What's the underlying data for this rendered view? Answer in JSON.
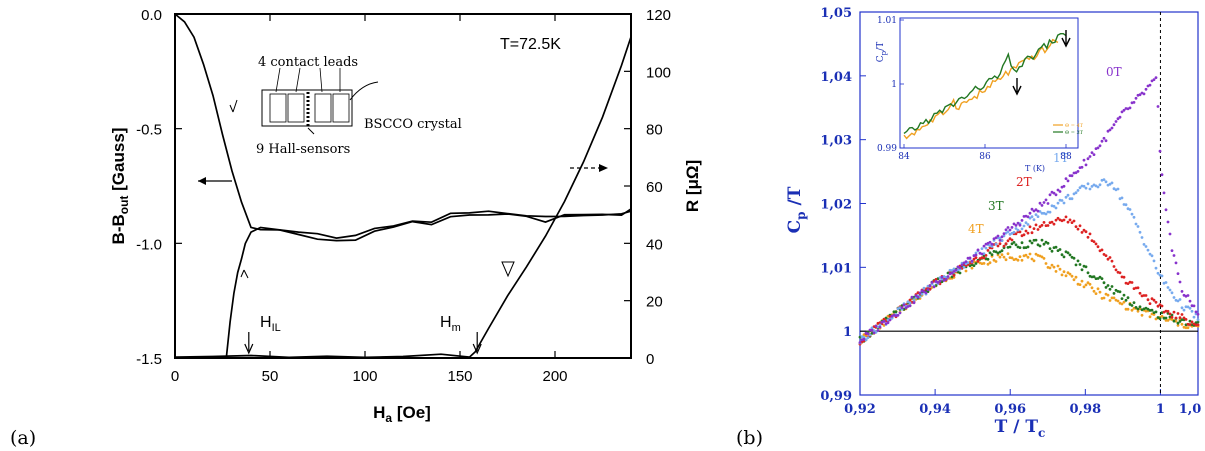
{
  "panels": {
    "a_label": "(a)",
    "b_label": "(b)"
  },
  "chart_data": [
    {
      "type": "line",
      "annotation_temperature": "T=72.5K",
      "xlabel": "H_a [Oe]",
      "ylabel_left": "B-B_out [Gauss]",
      "ylabel_right": "R [μΩ]",
      "xlim": [
        0,
        240
      ],
      "ylim_left": [
        -1.5,
        0.0
      ],
      "ylim_right": [
        0,
        120
      ],
      "x_ticks": [
        "0",
        "50",
        "100",
        "150",
        "200"
      ],
      "y_left_ticks": [
        "0.0",
        "-0.5",
        "-1.0",
        "-1.5"
      ],
      "y_right_ticks": [
        "0",
        "20",
        "40",
        "60",
        "80",
        "100",
        "120"
      ],
      "inset_labels": {
        "leads": "4 contact leads",
        "crystal": "BSCCO crystal",
        "sensors": "9 Hall-sensors"
      },
      "markers": [
        {
          "label": "H_IL",
          "x": 42
        },
        {
          "label": "H_m",
          "x": 158
        }
      ],
      "series": [
        {
          "axis": "left",
          "x": [
            0,
            5,
            10,
            15,
            20,
            25,
            30,
            35,
            40,
            45,
            55,
            65,
            75,
            85,
            95,
            105,
            115,
            125,
            135,
            145,
            155,
            165,
            175,
            185,
            195,
            205,
            215,
            225,
            235,
            240
          ],
          "y": [
            0.0,
            -0.03,
            -0.1,
            -0.22,
            -0.36,
            -0.52,
            -0.68,
            -0.82,
            -0.93,
            -0.94,
            -0.95,
            -0.96,
            -0.98,
            -0.99,
            -0.98,
            -0.95,
            -0.93,
            -0.91,
            -0.91,
            -0.88,
            -0.87,
            -0.87,
            -0.88,
            -0.88,
            -0.9,
            -0.88,
            -0.87,
            -0.88,
            -0.87,
            -0.85
          ]
        },
        {
          "axis": "left",
          "x": [
            27,
            29,
            31,
            33,
            35,
            37,
            40,
            45,
            55,
            65,
            75,
            85,
            95,
            105,
            115,
            125,
            135,
            145,
            155,
            165,
            175,
            185,
            195,
            205,
            215,
            225,
            235,
            240
          ],
          "y": [
            -1.5,
            -1.35,
            -1.22,
            -1.13,
            -1.06,
            -1.0,
            -0.95,
            -0.93,
            -0.94,
            -0.95,
            -0.96,
            -0.97,
            -0.96,
            -0.94,
            -0.92,
            -0.9,
            -0.9,
            -0.87,
            -0.86,
            -0.86,
            -0.87,
            -0.88,
            -0.89,
            -0.89,
            -0.88,
            -0.87,
            -0.87,
            -0.86
          ]
        },
        {
          "axis": "right",
          "x": [
            0,
            20,
            40,
            60,
            80,
            100,
            120,
            140,
            155,
            158,
            165,
            175,
            185,
            195,
            205,
            215,
            225,
            235,
            240
          ],
          "y": [
            0.3,
            0.4,
            0.6,
            0.8,
            0.8,
            0.8,
            0.8,
            0.8,
            0.8,
            1.5,
            10,
            22,
            32,
            42,
            54,
            68,
            84,
            102,
            112
          ]
        }
      ]
    },
    {
      "type": "scatter",
      "xlabel": "T / T_c",
      "ylabel": "C_p / T",
      "xlim": [
        0.92,
        1.01
      ],
      "ylim": [
        0.99,
        1.05
      ],
      "x_ticks": [
        "0,92",
        "0,94",
        "0,96",
        "0,98",
        "1",
        "1,0"
      ],
      "y_ticks": [
        "0,99",
        "1",
        "1,01",
        "1,02",
        "1,03",
        "1,04",
        "1,05"
      ],
      "series": [
        {
          "name": "0T",
          "color": "#8833cc",
          "x": [
            0.92,
            0.93,
            0.94,
            0.95,
            0.96,
            0.97,
            0.98,
            0.985,
            0.99,
            0.995,
            0.999,
            1.0,
            1.003,
            1.006,
            1.01
          ],
          "y": [
            0.9985,
            1.003,
            1.0075,
            1.0115,
            1.016,
            1.0205,
            1.0265,
            1.03,
            1.034,
            1.037,
            1.0395,
            1.026,
            1.013,
            1.006,
            1.003
          ]
        },
        {
          "name": "1T",
          "color": "#77aaee",
          "x": [
            0.92,
            0.93,
            0.94,
            0.95,
            0.96,
            0.97,
            0.98,
            0.987,
            0.993,
            1.0,
            1.005,
            1.01
          ],
          "y": [
            0.9985,
            1.003,
            1.0075,
            1.0115,
            1.0155,
            1.019,
            1.0225,
            1.0235,
            1.0175,
            1.0085,
            1.0045,
            1.002
          ]
        },
        {
          "name": "2T",
          "color": "#dd2222",
          "x": [
            0.92,
            0.93,
            0.94,
            0.95,
            0.96,
            0.97,
            0.976,
            0.982,
            0.99,
            1.0,
            1.01
          ],
          "y": [
            0.9985,
            1.003,
            1.0075,
            1.011,
            1.0145,
            1.017,
            1.0175,
            1.0145,
            1.0085,
            1.0035,
            1.001
          ]
        },
        {
          "name": "3T",
          "color": "#227722",
          "x": [
            0.92,
            0.93,
            0.94,
            0.95,
            0.96,
            0.968,
            0.975,
            0.985,
            0.995,
            1.0,
            1.01
          ],
          "y": [
            0.9985,
            1.003,
            1.0075,
            1.0105,
            1.0135,
            1.0138,
            1.012,
            1.0075,
            1.0035,
            1.0025,
            1.001
          ]
        },
        {
          "name": "4T",
          "color": "#f0a020",
          "x": [
            0.92,
            0.93,
            0.94,
            0.95,
            0.96,
            0.967,
            0.975,
            0.985,
            0.995,
            1.0,
            1.01
          ],
          "y": [
            0.9985,
            1.003,
            1.0075,
            1.0105,
            1.0118,
            1.0115,
            1.009,
            1.0055,
            1.003,
            1.002,
            1.0005
          ]
        }
      ],
      "inset": {
        "xlabel": "T (K)",
        "ylabel": "C_p/T",
        "x_ticks": [
          "84",
          "86",
          "88"
        ],
        "y_ticks": [
          "0.99",
          "1",
          "1.01"
        ],
        "xlim": [
          84,
          88
        ],
        "ylim": [
          0.99,
          1.01
        ],
        "legend": [
          "Θ = 4T",
          "Θ = 3T"
        ],
        "series": [
          {
            "color": "#f0a020",
            "x": [
              84,
              84.5,
              85,
              85.2,
              85.3,
              85.5,
              86,
              86.5,
              87,
              87.5,
              87.8
            ],
            "y": [
              0.9915,
              0.9935,
              0.9955,
              0.9975,
              0.9965,
              0.997,
              0.999,
              1.0015,
              1.0035,
              1.0055,
              1.007
            ]
          },
          {
            "color": "#227722",
            "x": [
              84,
              84.5,
              85,
              85.5,
              86,
              86.4,
              86.55,
              86.7,
              87,
              87.5,
              88
            ],
            "y": [
              0.992,
              0.994,
              0.996,
              0.998,
              1.0,
              1.0015,
              1.0045,
              1.002,
              1.0035,
              1.006,
              1.008
            ]
          }
        ]
      }
    }
  ]
}
